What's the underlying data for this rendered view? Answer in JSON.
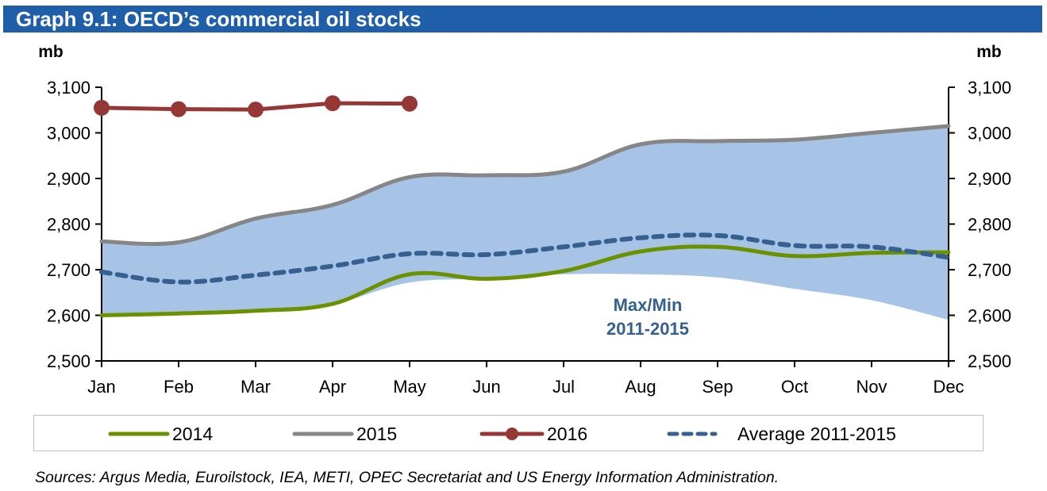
{
  "header": {
    "title": "Graph 9.1: OECD’s commercial oil stocks"
  },
  "colors": {
    "title_bg": "#1f5ea8",
    "band": "#a7c4e7",
    "y2014": "#6b9100",
    "y2015": "#868686",
    "y2016": "#953735",
    "average": "#35608f",
    "band_label": "#35608f"
  },
  "chart_data": {
    "type": "line",
    "title": "Graph 9.1: OECD’s commercial oil stocks",
    "xlabel": "",
    "ylabel": "mb",
    "ylabel_right": "mb",
    "categories": [
      "Jan",
      "Feb",
      "Mar",
      "Apr",
      "May",
      "Jun",
      "Jul",
      "Aug",
      "Sep",
      "Oct",
      "Nov",
      "Dec"
    ],
    "ylim": [
      2500,
      3100
    ],
    "yticks": [
      2500,
      2600,
      2700,
      2800,
      2900,
      3000,
      3100
    ],
    "ytick_labels": [
      "2,500",
      "2,600",
      "2,700",
      "2,800",
      "2,900",
      "3,000",
      "3,100"
    ],
    "grid": false,
    "legend_position": "bottom",
    "band": {
      "name": "Max/Min 2011-2015",
      "label_line1": "Max/Min",
      "label_line2": "2011-2015",
      "max": [
        2762,
        2760,
        2812,
        2842,
        2903,
        2907,
        2915,
        2975,
        2982,
        2985,
        3000,
        3015
      ],
      "min": [
        2600,
        2604,
        2610,
        2625,
        2672,
        2680,
        2690,
        2690,
        2683,
        2658,
        2633,
        2590
      ]
    },
    "series": [
      {
        "name": "2014",
        "style": "solid",
        "markers": false,
        "values": [
          2600,
          2604,
          2610,
          2625,
          2690,
          2680,
          2697,
          2740,
          2750,
          2730,
          2737,
          2738
        ]
      },
      {
        "name": "2015",
        "style": "solid",
        "markers": false,
        "values": [
          2762,
          2760,
          2812,
          2842,
          2903,
          2907,
          2915,
          2975,
          2982,
          2985,
          3000,
          3015
        ]
      },
      {
        "name": "2016",
        "style": "solid",
        "markers": true,
        "values": [
          3055,
          3052,
          3051,
          3065,
          3064,
          null,
          null,
          null,
          null,
          null,
          null,
          null
        ]
      },
      {
        "name": "Average 2011-2015",
        "style": "dashed",
        "markers": false,
        "values": [
          2695,
          2673,
          2688,
          2708,
          2735,
          2733,
          2750,
          2770,
          2775,
          2753,
          2750,
          2727
        ]
      }
    ]
  },
  "legend": {
    "items": [
      {
        "label": "2014"
      },
      {
        "label": "2015"
      },
      {
        "label": "2016"
      },
      {
        "label": "Average 2011-2015"
      }
    ]
  },
  "footer": {
    "sources": "Sources: Argus Media, Euroilstock, IEA, METI, OPEC Secretariat and US Energy Information Administration."
  }
}
